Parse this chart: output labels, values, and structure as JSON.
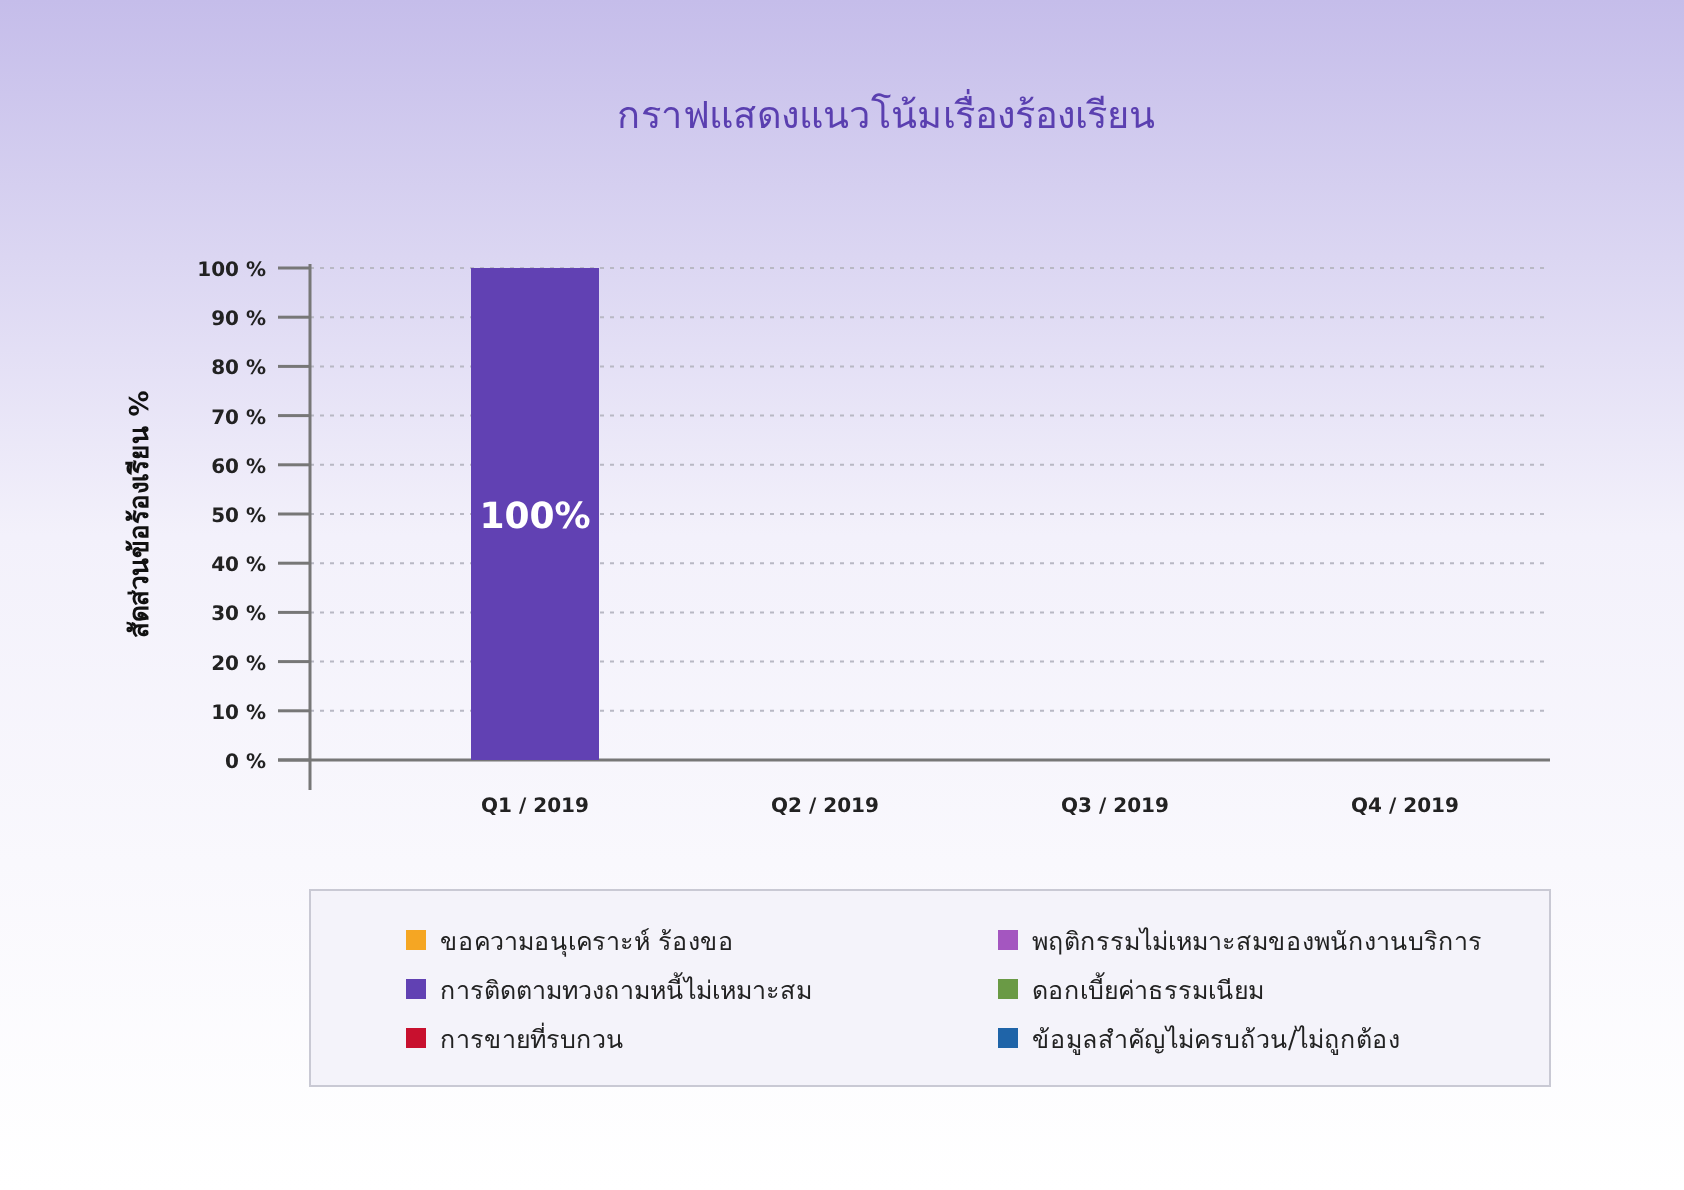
{
  "chart_data": {
    "type": "bar",
    "title": "กราฟแสดงแนวโน้มเรื่องร้องเรียน",
    "ylabel": "สัดส่วนข้อร้องเรียน %",
    "categories": [
      "Q1 / 2019",
      "Q2 / 2019",
      "Q3 / 2019",
      "Q4 / 2019"
    ],
    "series": [
      {
        "name": "ขอความอนุเคราะห์ ร้องขอ",
        "color": "#f5a623",
        "values": [
          null,
          null,
          null,
          null
        ]
      },
      {
        "name": "พฤติกรรมไม่เหมาะสมของพนักงานบริการ",
        "color": "#a456c0",
        "values": [
          null,
          null,
          null,
          null
        ]
      },
      {
        "name": "การติดตามทวงถามหนี้ไม่เหมาะสม",
        "color": "#6141b3",
        "values": [
          100,
          null,
          null,
          null
        ],
        "value_labels": [
          "100%",
          null,
          null,
          null
        ]
      },
      {
        "name": "ดอกเบี้ยค่าธรรมเนียม",
        "color": "#6a9a45",
        "values": [
          null,
          null,
          null,
          null
        ]
      },
      {
        "name": "การขายที่รบกวน",
        "color": "#c8102e",
        "values": [
          null,
          null,
          null,
          null
        ]
      },
      {
        "name": "ข้อมูลสำคัญไม่ครบถ้วน/ไม่ถูกต้อง",
        "color": "#1f64a8",
        "values": [
          null,
          null,
          null,
          null
        ]
      }
    ],
    "ylim": [
      0,
      100
    ],
    "yticks": [
      {
        "value": 0,
        "label": "0 %"
      },
      {
        "value": 10,
        "label": "10 %"
      },
      {
        "value": 20,
        "label": "20 %"
      },
      {
        "value": 30,
        "label": "30 %"
      },
      {
        "value": 40,
        "label": "40 %"
      },
      {
        "value": 50,
        "label": "50 %"
      },
      {
        "value": 60,
        "label": "60 %"
      },
      {
        "value": 70,
        "label": "70 %"
      },
      {
        "value": 80,
        "label": "80 %"
      },
      {
        "value": 90,
        "label": "90 %"
      },
      {
        "value": 100,
        "label": "100 %"
      }
    ],
    "grid": "y",
    "legend": "bottom"
  }
}
